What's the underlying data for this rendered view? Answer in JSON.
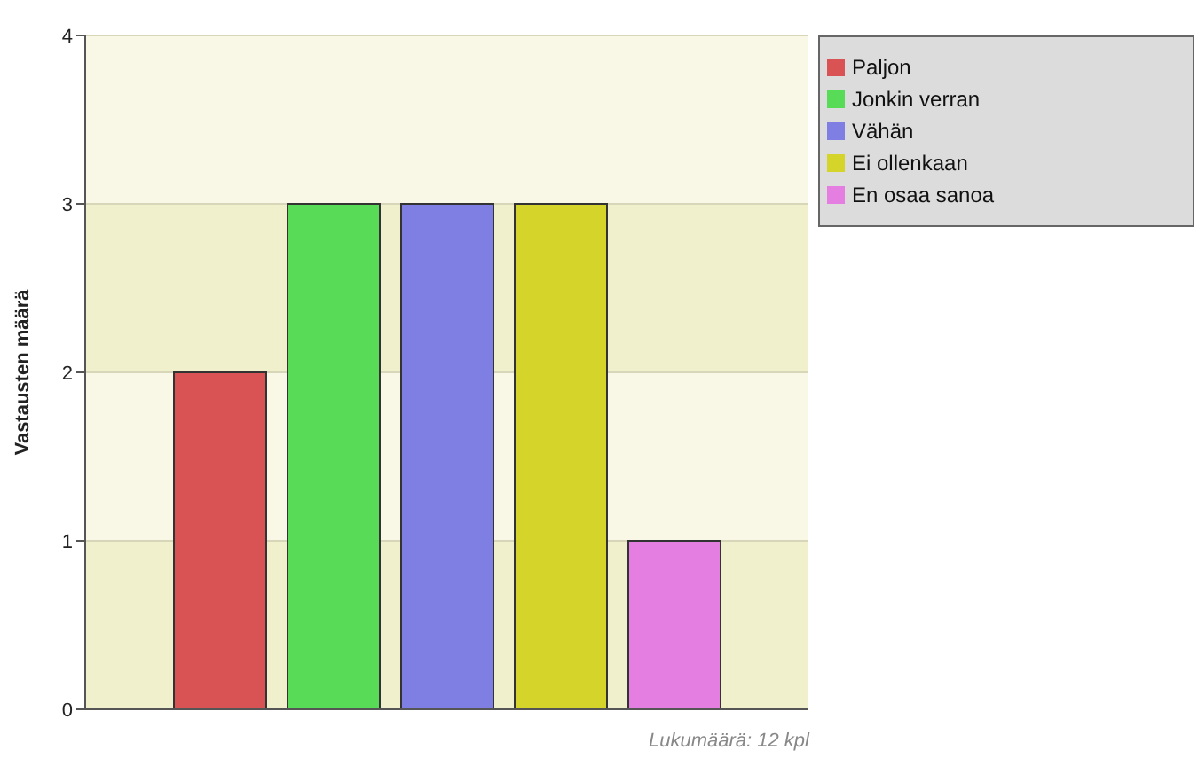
{
  "chart_data": {
    "type": "bar",
    "ylabel": "Vastausten määrä",
    "annotations": [
      "Lukumäärä: 12 kpl"
    ],
    "categories": [
      null
    ],
    "series": [
      {
        "name": "Paljon",
        "color": "#d95355",
        "values": [
          2
        ]
      },
      {
        "name": "Jonkin verran",
        "color": "#58dc58",
        "values": [
          3
        ]
      },
      {
        "name": "Vähän",
        "color": "#7f7fe3",
        "values": [
          3
        ]
      },
      {
        "name": "Ei ollenkaan",
        "color": "#d4d42a",
        "values": [
          3
        ]
      },
      {
        "name": "En osaa sanoa",
        "color": "#e47fe1",
        "values": [
          1
        ]
      }
    ],
    "ylim": [
      0,
      4
    ],
    "yticks": [
      0,
      1,
      2,
      3,
      4
    ],
    "grid": "y",
    "legend": "top right"
  }
}
